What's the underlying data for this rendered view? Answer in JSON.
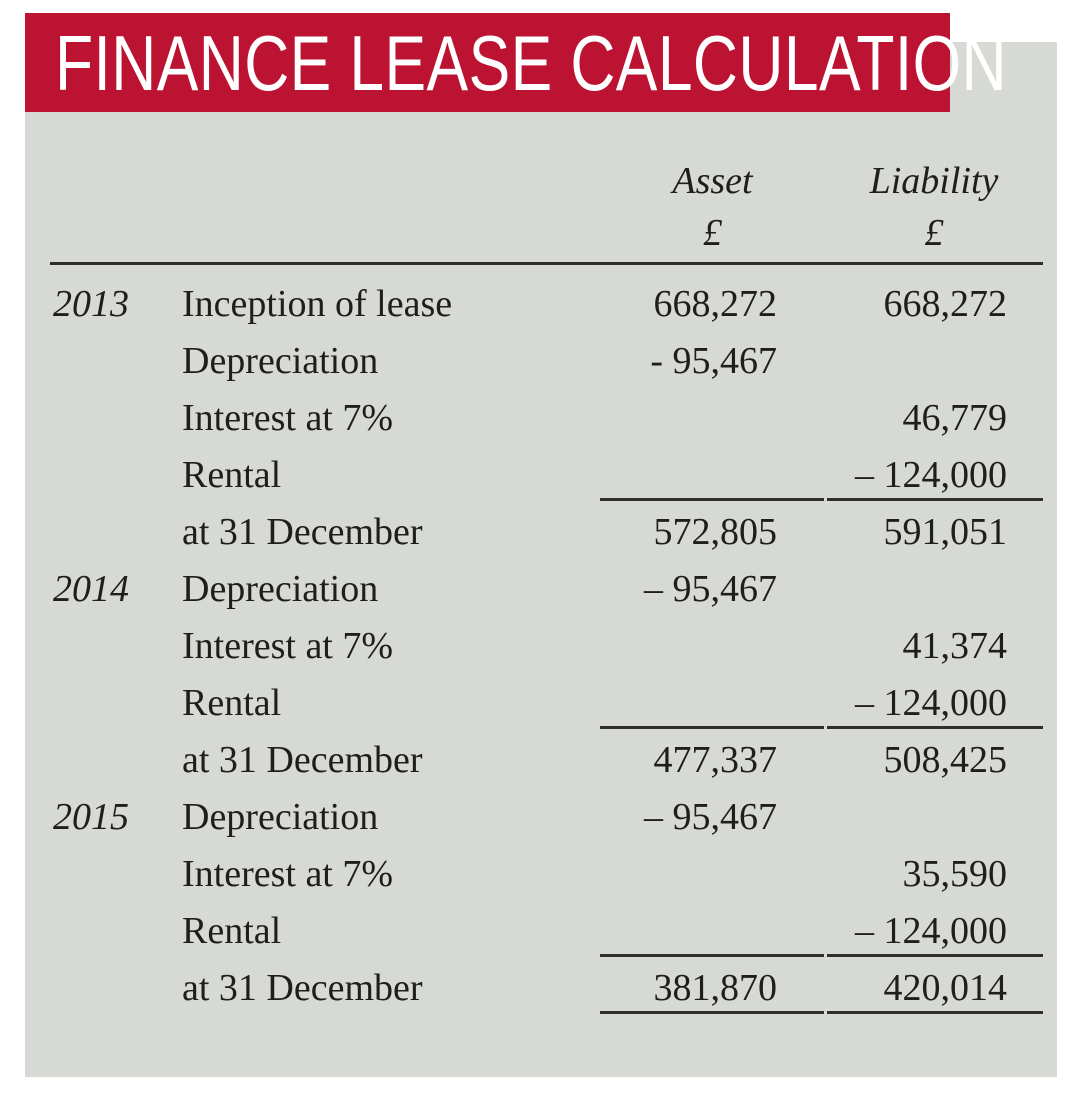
{
  "title": "FINANCE LEASE CALCULATION",
  "colors": {
    "banner_red": "#bb1331",
    "panel_gray": "#d7dad4",
    "text": "#1e1e1e",
    "rule": "#2e2e2e"
  },
  "table": {
    "columns": [
      {
        "label": "Asset",
        "currency": "£"
      },
      {
        "label": "Liability",
        "currency": "£"
      }
    ],
    "rows": [
      {
        "year": "2013",
        "desc": "Inception of lease",
        "asset": "668,272",
        "liability": "668,272",
        "rule_after": false
      },
      {
        "year": "",
        "desc": "Depreciation",
        "asset": "- 95,467",
        "liability": "",
        "rule_after": false
      },
      {
        "year": "",
        "desc": "Interest at 7%",
        "asset": "",
        "liability": "46,779",
        "rule_after": false
      },
      {
        "year": "",
        "desc": "Rental",
        "asset": "",
        "liability": "– 124,000",
        "rule_after": true
      },
      {
        "year": "",
        "desc": "at 31 December",
        "asset": "572,805",
        "liability": "591,051",
        "rule_after": false
      },
      {
        "year": "2014",
        "desc": "Depreciation",
        "asset": "– 95,467",
        "liability": "",
        "rule_after": false
      },
      {
        "year": "",
        "desc": "Interest at 7%",
        "asset": "",
        "liability": "41,374",
        "rule_after": false
      },
      {
        "year": "",
        "desc": "Rental",
        "asset": "",
        "liability": "– 124,000",
        "rule_after": true
      },
      {
        "year": "",
        "desc": "at 31 December",
        "asset": "477,337",
        "liability": "508,425",
        "rule_after": false
      },
      {
        "year": "2015",
        "desc": "Depreciation",
        "asset": "– 95,467",
        "liability": "",
        "rule_after": false
      },
      {
        "year": "",
        "desc": "Interest at 7%",
        "asset": "",
        "liability": "35,590",
        "rule_after": false
      },
      {
        "year": "",
        "desc": "Rental",
        "asset": "",
        "liability": "– 124,000",
        "rule_after": true
      },
      {
        "year": "",
        "desc": "at 31 December",
        "asset": "381,870",
        "liability": "420,014",
        "rule_after": true
      }
    ]
  }
}
